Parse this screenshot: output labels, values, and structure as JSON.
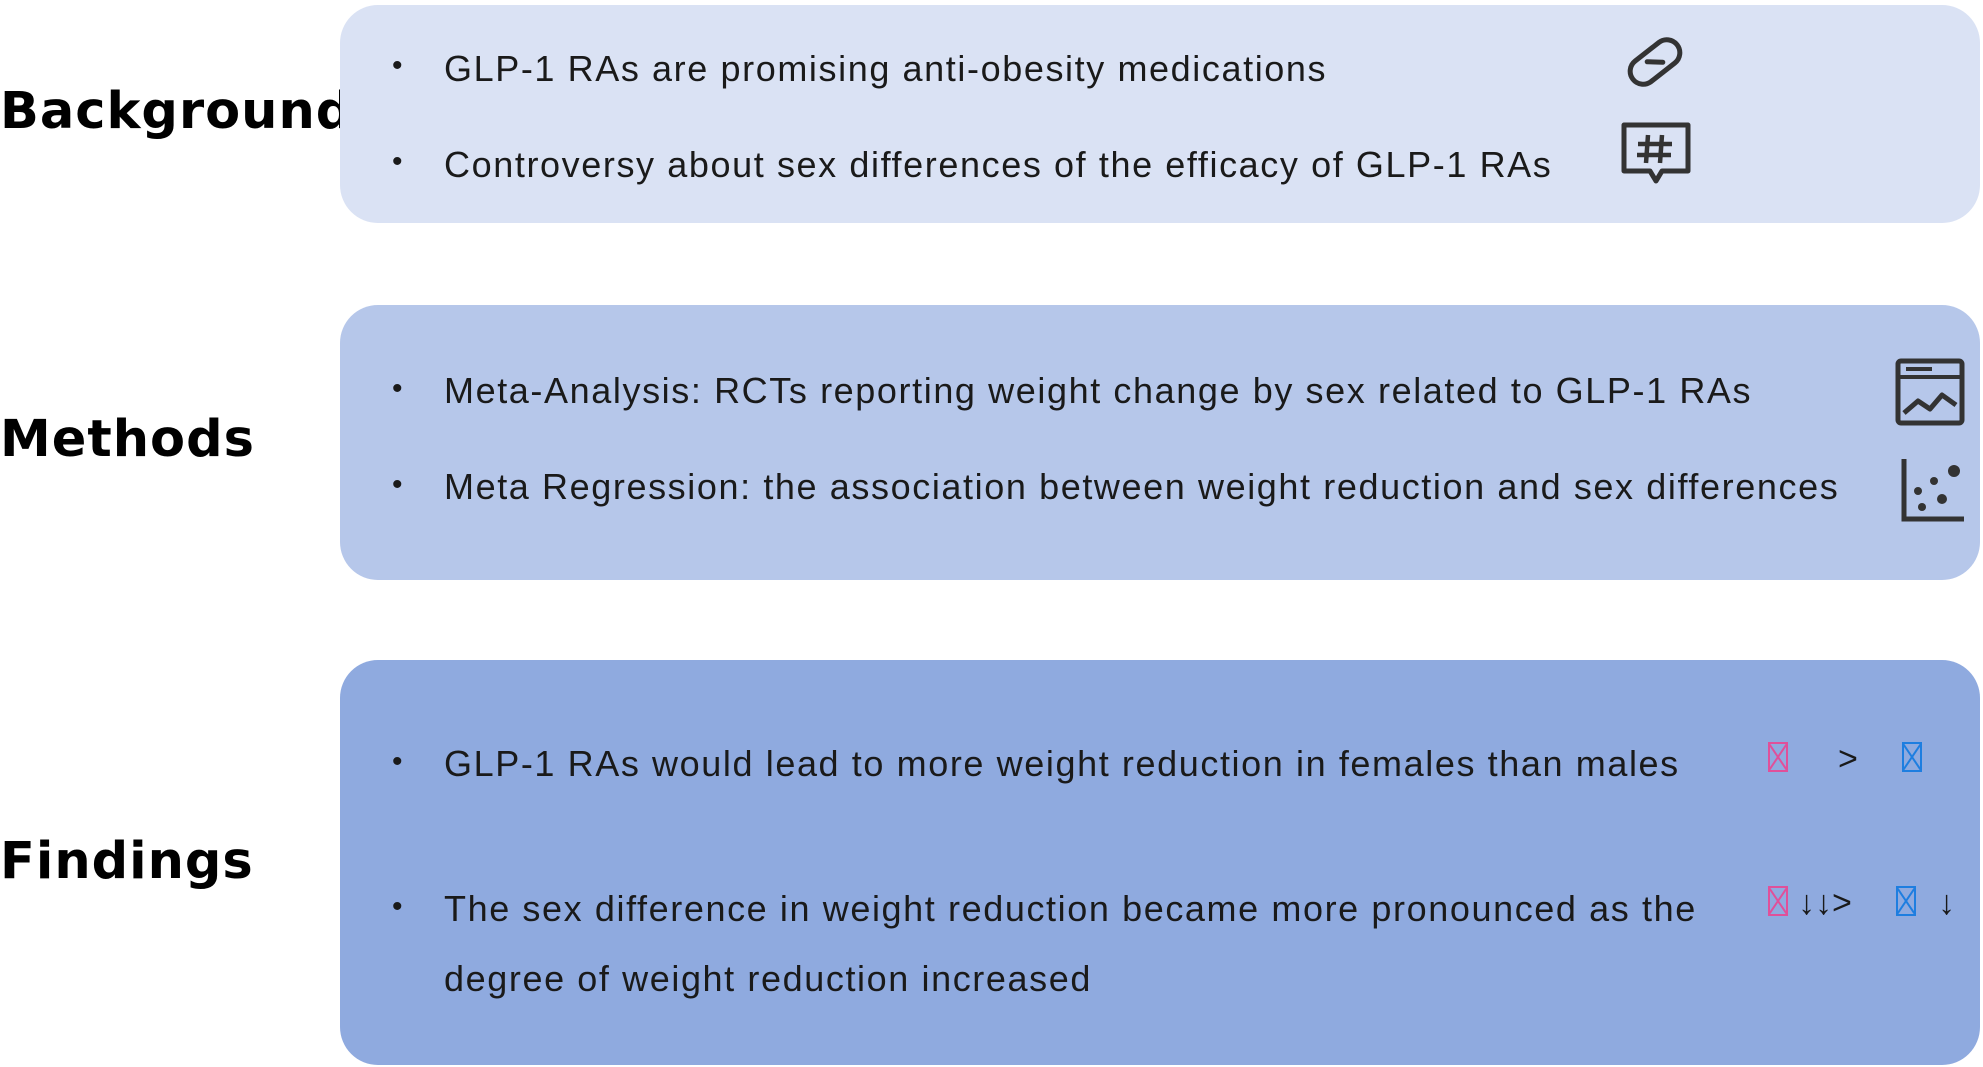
{
  "colors": {
    "background_panel": "#dae2f4",
    "methods_panel": "#b6c7ea",
    "findings_panel": "#8faadf",
    "female_symbol": "#e0509a",
    "male_symbol": "#1e7ee0"
  },
  "sections": {
    "background": {
      "label": "Background",
      "items": [
        "GLP-1 RAs are promising anti-obesity medications",
        "Controversy about sex differences of the efficacy of GLP-1 RAs"
      ],
      "icons": [
        "pill-icon",
        "hashtag-comment-icon"
      ]
    },
    "methods": {
      "label": "Methods",
      "items": [
        "Meta-Analysis: RCTs reporting weight change by sex related to GLP-1 RAs",
        "Meta Regression:  the association between weight reduction and sex differences"
      ],
      "icons": [
        "line-chart-window-icon",
        "scatter-plot-icon"
      ]
    },
    "findings": {
      "label": "Findings",
      "items": [
        "GLP-1 RAs would lead to more weight reduction in females than males",
        " The sex difference in weight reduction became more pronounced as the",
        "degree of weight reduction increased"
      ],
      "comparison_1": {
        "female_icon": "female-symbol-icon",
        "operator": ">",
        "male_icon": "male-symbol-icon"
      },
      "comparison_2": {
        "female_icon": "female-symbol-icon",
        "female_arrows": "↓↓>",
        "male_icon": "male-symbol-icon",
        "male_arrows": "↓"
      }
    }
  }
}
